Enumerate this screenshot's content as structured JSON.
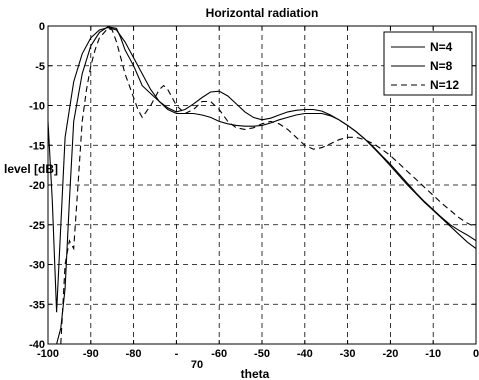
{
  "chart_data": {
    "type": "line",
    "title": "Horizontal radiation",
    "xlabel": "theta",
    "ylabel": "level [dB]",
    "xlim": [
      -100,
      0
    ],
    "ylim": [
      -40,
      0
    ],
    "x_ticks": [
      -100,
      -90,
      -80,
      -70,
      -60,
      -50,
      -40,
      -30,
      -20,
      -10,
      0
    ],
    "x_tick_labels": [
      "-100",
      "-90",
      "-80",
      "-",
      "-60",
      "-50",
      "-40",
      "-30",
      "-20",
      "-10",
      "0"
    ],
    "x_tick_label_extra": "70",
    "y_ticks": [
      0,
      -5,
      -10,
      -15,
      -20,
      -25,
      -30,
      -35,
      -40
    ],
    "y_tick_labels": [
      "0",
      "-5",
      "-10",
      "-15",
      "-20",
      "-25",
      "-30",
      "-35",
      "-40"
    ],
    "grid": true,
    "legend_position": "top-right",
    "series": [
      {
        "name": "N=4",
        "style": "solid",
        "x": [
          -100,
          -99,
          -98,
          -96,
          -94,
          -92,
          -90,
          -88,
          -86,
          -84,
          -82,
          -80,
          -78,
          -76,
          -74,
          -72,
          -70,
          -68,
          -66,
          -64,
          -62,
          -60,
          -58,
          -56,
          -54,
          -52,
          -50,
          -48,
          -46,
          -44,
          -42,
          -40,
          -38,
          -36,
          -34,
          -32,
          -30,
          -28,
          -26,
          -24,
          -22,
          -20,
          -18,
          -16,
          -14,
          -12,
          -10,
          -8,
          -6,
          -4,
          -2,
          0
        ],
        "y": [
          -12,
          -22,
          -36,
          -14,
          -7,
          -3.5,
          -1.5,
          -0.5,
          -0.2,
          -0.5,
          -2,
          -4,
          -6,
          -8,
          -9.5,
          -10.5,
          -11,
          -11,
          -11,
          -11.2,
          -11.5,
          -12,
          -12.3,
          -12.5,
          -12.6,
          -12.6,
          -12.5,
          -12.2,
          -11.8,
          -11.5,
          -11.2,
          -11,
          -11,
          -11,
          -11.3,
          -11.8,
          -12.5,
          -13.3,
          -14.2,
          -15.3,
          -16.4,
          -17.6,
          -18.8,
          -20,
          -21.1,
          -22.2,
          -23.2,
          -24.2,
          -25.2,
          -26.2,
          -27.2,
          -28
        ]
      },
      {
        "name": "N=8",
        "style": "solid",
        "x": [
          -98,
          -97,
          -96,
          -95,
          -94,
          -92,
          -90,
          -88,
          -86,
          -84,
          -83,
          -82,
          -80,
          -78,
          -76,
          -74,
          -72,
          -70,
          -68,
          -66,
          -64,
          -62,
          -60,
          -58,
          -56,
          -54,
          -52,
          -50,
          -48,
          -46,
          -44,
          -42,
          -40,
          -38,
          -36,
          -34,
          -32,
          -30,
          -28,
          -26,
          -24,
          -22,
          -20,
          -18,
          -16,
          -14,
          -12,
          -10,
          -8,
          -6,
          -4,
          -2,
          0
        ],
        "y": [
          -40,
          -38,
          -33,
          -22,
          -12,
          -6,
          -2.5,
          -0.8,
          -0.1,
          -0.3,
          -1.5,
          -3,
          -5,
          -7.5,
          -8.5,
          -9.5,
          -10.3,
          -10.8,
          -10.5,
          -9.8,
          -9,
          -8.3,
          -8.2,
          -8.8,
          -9.8,
          -10.8,
          -11.5,
          -11.8,
          -11.6,
          -11.2,
          -10.8,
          -10.6,
          -10.5,
          -10.5,
          -10.7,
          -11.2,
          -11.8,
          -12.5,
          -13.3,
          -14.2,
          -15.2,
          -16.3,
          -17.4,
          -18.6,
          -19.8,
          -21,
          -22.1,
          -23.1,
          -24.1,
          -25,
          -25.7,
          -26.3,
          -27
        ]
      },
      {
        "name": "N=12",
        "style": "dashed",
        "x": [
          -97,
          -96,
          -95,
          -94,
          -93,
          -92,
          -91,
          -90,
          -89,
          -88,
          -86,
          -85,
          -84,
          -83,
          -82,
          -81,
          -80,
          -79,
          -78,
          -76,
          -74,
          -73,
          -72,
          -71,
          -70,
          -68,
          -66,
          -64,
          -62,
          -60,
          -58,
          -56,
          -54,
          -52,
          -50,
          -48,
          -46,
          -44,
          -42,
          -40,
          -38,
          -36,
          -34,
          -32,
          -30,
          -28,
          -26,
          -24,
          -22,
          -20,
          -18,
          -16,
          -14,
          -12,
          -10,
          -8,
          -6,
          -4,
          -2,
          0
        ],
        "y": [
          -40,
          -30,
          -27,
          -28,
          -20,
          -12,
          -8,
          -5,
          -3,
          -1.5,
          -0.3,
          -0.5,
          -2,
          -4,
          -6,
          -7.5,
          -9,
          -10.5,
          -11.5,
          -10,
          -8,
          -7.5,
          -8,
          -9,
          -10,
          -11,
          -10.5,
          -9.5,
          -9.5,
          -10.5,
          -12,
          -12.8,
          -13,
          -12.8,
          -12.3,
          -12,
          -12.3,
          -13,
          -14,
          -15,
          -15.5,
          -15.3,
          -14.8,
          -14.3,
          -14,
          -14,
          -14.3,
          -14.8,
          -15.5,
          -16.3,
          -17.3,
          -18.3,
          -19.3,
          -20.3,
          -21.3,
          -22.3,
          -23.2,
          -24.1,
          -24.8,
          -25.3
        ]
      }
    ]
  }
}
